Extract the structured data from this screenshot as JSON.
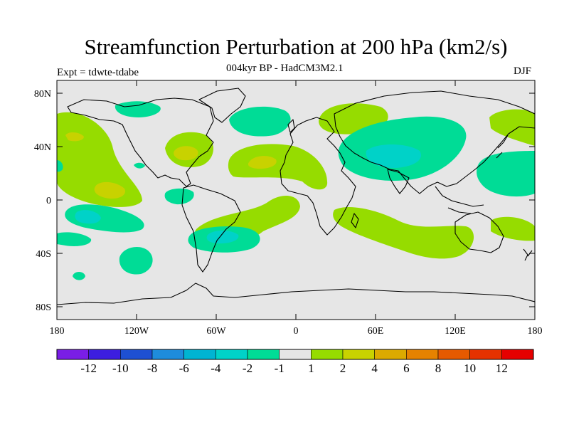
{
  "header": {
    "title": "Streamfunction Perturbation at 200 hPa (km2/s)",
    "left": "Expt = tdwte-tdabe",
    "center": "004kyr BP - HadCM3M2.1",
    "right": "DJF"
  },
  "axes": {
    "lat_labels": [
      "80N",
      "40N",
      "0",
      "40S",
      "80S"
    ],
    "lon_labels": [
      "180",
      "120W",
      "60W",
      "0",
      "60E",
      "120E",
      "180"
    ]
  },
  "colorbar": {
    "colors": [
      "#7a1ee6",
      "#3c1ee0",
      "#1e50d2",
      "#1e8cdc",
      "#00b4d2",
      "#00d2c8",
      "#00dc96",
      "#e6e6e6",
      "#96dc00",
      "#c8d200",
      "#dcaa00",
      "#e68200",
      "#e65a00",
      "#e63200",
      "#e60000"
    ],
    "labels": [
      "-12",
      "-10",
      "-8",
      "-6",
      "-4",
      "-2",
      "-1",
      "1",
      "2",
      "4",
      "6",
      "8",
      "10",
      "12"
    ]
  },
  "colors": {
    "background": "#e6e6e6",
    "coast": "#000000"
  }
}
